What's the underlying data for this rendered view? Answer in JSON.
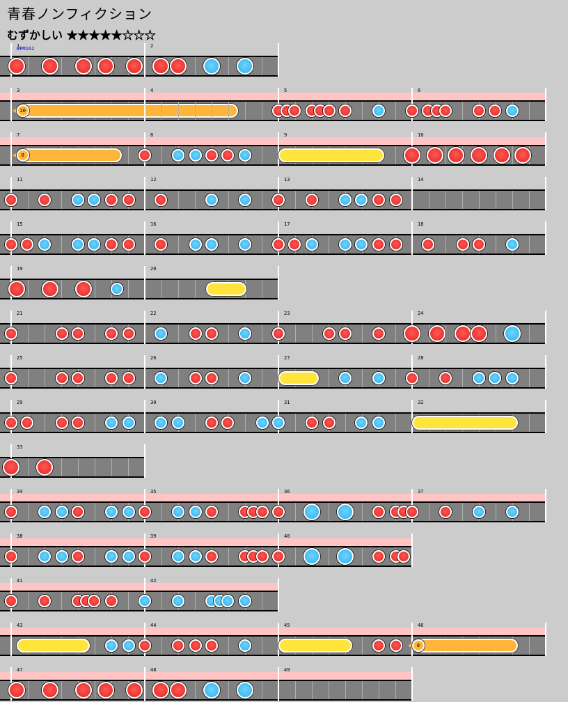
{
  "song": {
    "title": "青春ノンフィクション",
    "difficulty_label": "むずかしい",
    "stars_filled": 5,
    "stars_total": 8,
    "stars_text": "★★★★★☆☆☆",
    "bpm_label": "BPM162"
  },
  "colors": {
    "don": "#e32320",
    "ka": "#2cb0ee",
    "roll": "#ffe53b",
    "balloon": "#ffb53a",
    "gogo": "#ffc4c4",
    "lane": "#808080",
    "background": "#cccccc"
  },
  "rows": [
    {
      "gogo": false,
      "measures": [
        {
          "num": "1",
          "notes": [
            [
              0.04,
              "D"
            ],
            [
              0.29,
              "D"
            ],
            [
              0.54,
              "D"
            ],
            [
              0.71,
              "D"
            ],
            [
              0.92,
              "D"
            ]
          ]
        },
        {
          "num": "2",
          "notes": [
            [
              0.12,
              "D"
            ],
            [
              0.25,
              "D"
            ],
            [
              0.5,
              "K"
            ],
            [
              0.75,
              "K"
            ]
          ]
        }
      ]
    },
    {
      "gogo": true,
      "measures": [
        {
          "num": "3",
          "notes": [],
          "spans": [
            [
              0.04,
              "balloon",
              1.66,
              "10"
            ]
          ]
        },
        {
          "num": "4",
          "notes": []
        },
        {
          "num": "5",
          "notes": [
            [
              0.0,
              "d"
            ],
            [
              0.06,
              "d"
            ],
            [
              0.12,
              "d"
            ],
            [
              0.25,
              "d"
            ],
            [
              0.31,
              "d"
            ],
            [
              0.38,
              "d"
            ],
            [
              0.5,
              "d"
            ],
            [
              0.75,
              "k"
            ]
          ]
        },
        {
          "num": "6",
          "notes": [
            [
              0.0,
              "d"
            ],
            [
              0.12,
              "d"
            ],
            [
              0.19,
              "d"
            ],
            [
              0.25,
              "d"
            ],
            [
              0.5,
              "d"
            ],
            [
              0.62,
              "d"
            ],
            [
              0.75,
              "k"
            ]
          ]
        }
      ]
    },
    {
      "gogo": true,
      "measures": [
        {
          "num": "7",
          "notes": [],
          "spans": [
            [
              0.04,
              "balloon",
              0.79,
              "8"
            ]
          ]
        },
        {
          "num": "8",
          "notes": [
            [
              0.0,
              "d"
            ],
            [
              0.25,
              "k"
            ],
            [
              0.38,
              "k"
            ],
            [
              0.5,
              "d"
            ],
            [
              0.62,
              "d"
            ],
            [
              0.75,
              "k"
            ]
          ]
        },
        {
          "num": "9",
          "notes": [],
          "spans": [
            [
              0.0,
              "roll",
              0.79
            ]
          ]
        },
        {
          "num": "10",
          "notes": [
            [
              0.0,
              "D"
            ],
            [
              0.17,
              "D"
            ],
            [
              0.33,
              "D"
            ],
            [
              0.5,
              "D"
            ],
            [
              0.67,
              "D"
            ],
            [
              0.83,
              "D"
            ]
          ]
        }
      ]
    },
    {
      "gogo": false,
      "measures": [
        {
          "num": "11",
          "notes": [
            [
              0.0,
              "d"
            ],
            [
              0.25,
              "d"
            ],
            [
              0.5,
              "k"
            ],
            [
              0.62,
              "k"
            ],
            [
              0.75,
              "d"
            ],
            [
              0.88,
              "d"
            ]
          ]
        },
        {
          "num": "12",
          "notes": [
            [
              0.12,
              "d"
            ],
            [
              0.5,
              "k"
            ],
            [
              0.75,
              "k"
            ]
          ]
        },
        {
          "num": "13",
          "notes": [
            [
              0.0,
              "d"
            ],
            [
              0.25,
              "d"
            ],
            [
              0.5,
              "k"
            ],
            [
              0.62,
              "k"
            ],
            [
              0.75,
              "d"
            ],
            [
              0.88,
              "d"
            ]
          ]
        },
        {
          "num": "14",
          "notes": []
        }
      ]
    },
    {
      "gogo": false,
      "measures": [
        {
          "num": "15",
          "notes": [
            [
              0.0,
              "d"
            ],
            [
              0.12,
              "d"
            ],
            [
              0.25,
              "k"
            ],
            [
              0.5,
              "k"
            ],
            [
              0.62,
              "k"
            ],
            [
              0.75,
              "d"
            ],
            [
              0.88,
              "d"
            ]
          ]
        },
        {
          "num": "16",
          "notes": [
            [
              0.12,
              "d"
            ],
            [
              0.38,
              "k"
            ],
            [
              0.5,
              "k"
            ],
            [
              0.75,
              "k"
            ]
          ]
        },
        {
          "num": "17",
          "notes": [
            [
              0.0,
              "d"
            ],
            [
              0.12,
              "d"
            ],
            [
              0.25,
              "k"
            ],
            [
              0.5,
              "k"
            ],
            [
              0.62,
              "k"
            ],
            [
              0.75,
              "d"
            ],
            [
              0.88,
              "d"
            ]
          ]
        },
        {
          "num": "18",
          "notes": [
            [
              0.12,
              "d"
            ],
            [
              0.38,
              "d"
            ],
            [
              0.5,
              "d"
            ],
            [
              0.75,
              "k"
            ]
          ]
        }
      ]
    },
    {
      "gogo": false,
      "measures": [
        {
          "num": "19",
          "notes": [
            [
              0.04,
              "D"
            ],
            [
              0.29,
              "D"
            ],
            [
              0.54,
              "D"
            ],
            [
              0.79,
              "k"
            ]
          ]
        },
        {
          "num": "20",
          "notes": [],
          "spans": [
            [
              0.46,
              "roll",
              0.3
            ]
          ]
        }
      ]
    },
    {
      "gogo": false,
      "measures": [
        {
          "num": "21",
          "notes": [
            [
              0.0,
              "d"
            ],
            [
              0.38,
              "d"
            ],
            [
              0.5,
              "d"
            ],
            [
              0.75,
              "d"
            ],
            [
              0.88,
              "d"
            ]
          ]
        },
        {
          "num": "22",
          "notes": [
            [
              0.12,
              "k"
            ],
            [
              0.38,
              "d"
            ],
            [
              0.5,
              "d"
            ],
            [
              0.75,
              "k"
            ]
          ]
        },
        {
          "num": "23",
          "notes": [
            [
              0.0,
              "d"
            ],
            [
              0.38,
              "d"
            ],
            [
              0.5,
              "d"
            ],
            [
              0.75,
              "d"
            ]
          ]
        },
        {
          "num": "24",
          "notes": [
            [
              0.0,
              "D"
            ],
            [
              0.19,
              "D"
            ],
            [
              0.38,
              "D"
            ],
            [
              0.5,
              "D"
            ],
            [
              0.75,
              "K"
            ]
          ]
        }
      ]
    },
    {
      "gogo": false,
      "measures": [
        {
          "num": "25",
          "notes": [
            [
              0.0,
              "d"
            ],
            [
              0.38,
              "d"
            ],
            [
              0.5,
              "d"
            ],
            [
              0.75,
              "d"
            ],
            [
              0.88,
              "d"
            ]
          ]
        },
        {
          "num": "26",
          "notes": [
            [
              0.12,
              "k"
            ],
            [
              0.38,
              "d"
            ],
            [
              0.5,
              "d"
            ],
            [
              0.75,
              "k"
            ]
          ]
        },
        {
          "num": "27",
          "notes": [
            [
              0.5,
              "k"
            ],
            [
              0.75,
              "k"
            ]
          ],
          "spans": [
            [
              0.0,
              "roll",
              0.3
            ]
          ]
        },
        {
          "num": "28",
          "notes": [
            [
              0.0,
              "d"
            ],
            [
              0.25,
              "d"
            ],
            [
              0.5,
              "k"
            ],
            [
              0.62,
              "k"
            ],
            [
              0.75,
              "k"
            ]
          ]
        }
      ]
    },
    {
      "gogo": false,
      "measures": [
        {
          "num": "29",
          "notes": [
            [
              0.0,
              "d"
            ],
            [
              0.12,
              "d"
            ],
            [
              0.38,
              "d"
            ],
            [
              0.5,
              "d"
            ],
            [
              0.75,
              "k"
            ],
            [
              0.88,
              "k"
            ]
          ]
        },
        {
          "num": "30",
          "notes": [
            [
              0.12,
              "k"
            ],
            [
              0.25,
              "k"
            ],
            [
              0.5,
              "d"
            ],
            [
              0.62,
              "d"
            ],
            [
              0.88,
              "k"
            ]
          ]
        },
        {
          "num": "31",
          "notes": [
            [
              0.0,
              "k"
            ],
            [
              0.25,
              "d"
            ],
            [
              0.38,
              "d"
            ],
            [
              0.62,
              "k"
            ],
            [
              0.75,
              "k"
            ]
          ]
        },
        {
          "num": "32",
          "notes": [],
          "spans": [
            [
              0.0,
              "roll",
              0.79
            ]
          ]
        }
      ]
    },
    {
      "gogo": false,
      "measures": [
        {
          "num": "33",
          "notes": [
            [
              0.0,
              "D"
            ],
            [
              0.25,
              "D"
            ]
          ]
        }
      ]
    },
    {
      "gogo": true,
      "measures": [
        {
          "num": "34",
          "notes": [
            [
              0.0,
              "d"
            ],
            [
              0.25,
              "k"
            ],
            [
              0.38,
              "k"
            ],
            [
              0.5,
              "d"
            ],
            [
              0.75,
              "k"
            ],
            [
              0.88,
              "k"
            ]
          ]
        },
        {
          "num": "35",
          "notes": [
            [
              0.0,
              "d"
            ],
            [
              0.25,
              "k"
            ],
            [
              0.38,
              "k"
            ],
            [
              0.5,
              "d"
            ],
            [
              0.75,
              "d"
            ],
            [
              0.81,
              "d"
            ],
            [
              0.88,
              "d"
            ]
          ]
        },
        {
          "num": "36",
          "notes": [
            [
              0.0,
              "d"
            ],
            [
              0.25,
              "K"
            ],
            [
              0.5,
              "K"
            ],
            [
              0.75,
              "d"
            ],
            [
              0.88,
              "d"
            ],
            [
              0.94,
              "d"
            ]
          ]
        },
        {
          "num": "37",
          "notes": [
            [
              0.0,
              "d"
            ],
            [
              0.25,
              "d"
            ],
            [
              0.5,
              "k"
            ],
            [
              0.75,
              "k"
            ]
          ]
        }
      ]
    },
    {
      "gogo": true,
      "measures": [
        {
          "num": "38",
          "notes": [
            [
              0.0,
              "d"
            ],
            [
              0.25,
              "k"
            ],
            [
              0.38,
              "k"
            ],
            [
              0.5,
              "d"
            ],
            [
              0.75,
              "k"
            ],
            [
              0.88,
              "k"
            ]
          ]
        },
        {
          "num": "39",
          "notes": [
            [
              0.0,
              "d"
            ],
            [
              0.25,
              "k"
            ],
            [
              0.38,
              "k"
            ],
            [
              0.5,
              "d"
            ],
            [
              0.75,
              "d"
            ],
            [
              0.81,
              "d"
            ],
            [
              0.88,
              "d"
            ]
          ]
        },
        {
          "num": "40",
          "notes": [
            [
              0.0,
              "d"
            ],
            [
              0.25,
              "K"
            ],
            [
              0.5,
              "K"
            ],
            [
              0.75,
              "d"
            ],
            [
              0.88,
              "d"
            ],
            [
              0.94,
              "d"
            ]
          ]
        }
      ]
    },
    {
      "gogo": true,
      "measures": [
        {
          "num": "41",
          "notes": [
            [
              0.0,
              "d"
            ],
            [
              0.25,
              "d"
            ],
            [
              0.5,
              "d"
            ],
            [
              0.56,
              "d"
            ],
            [
              0.62,
              "d"
            ],
            [
              0.75,
              "d"
            ]
          ]
        },
        {
          "num": "42",
          "notes": [
            [
              0.0,
              "k"
            ],
            [
              0.25,
              "k"
            ],
            [
              0.5,
              "k"
            ],
            [
              0.56,
              "k"
            ],
            [
              0.62,
              "k"
            ],
            [
              0.75,
              "k"
            ]
          ]
        }
      ]
    },
    {
      "gogo": true,
      "measures": [
        {
          "num": "43",
          "notes": [
            [
              0.75,
              "k"
            ],
            [
              0.88,
              "k"
            ]
          ],
          "spans": [
            [
              0.04,
              "roll",
              0.55
            ]
          ]
        },
        {
          "num": "44",
          "notes": [
            [
              0.0,
              "d"
            ],
            [
              0.25,
              "d"
            ],
            [
              0.38,
              "d"
            ],
            [
              0.5,
              "d"
            ],
            [
              0.75,
              "k"
            ]
          ]
        },
        {
          "num": "45",
          "notes": [
            [
              0.75,
              "d"
            ],
            [
              0.88,
              "d"
            ]
          ],
          "spans": [
            [
              0.0,
              "roll",
              0.55
            ]
          ]
        },
        {
          "num": "46",
          "notes": [],
          "spans": [
            [
              0.0,
              "balloon",
              0.79,
              "8"
            ]
          ]
        }
      ]
    },
    {
      "gogo": true,
      "measures": [
        {
          "num": "47",
          "notes": [
            [
              0.04,
              "D"
            ],
            [
              0.29,
              "D"
            ],
            [
              0.54,
              "D"
            ],
            [
              0.71,
              "D"
            ],
            [
              0.92,
              "D"
            ]
          ]
        },
        {
          "num": "48",
          "notes": [
            [
              0.12,
              "D"
            ],
            [
              0.25,
              "D"
            ],
            [
              0.5,
              "K"
            ],
            [
              0.75,
              "K"
            ]
          ]
        },
        {
          "num": "49",
          "notes": []
        }
      ]
    }
  ]
}
